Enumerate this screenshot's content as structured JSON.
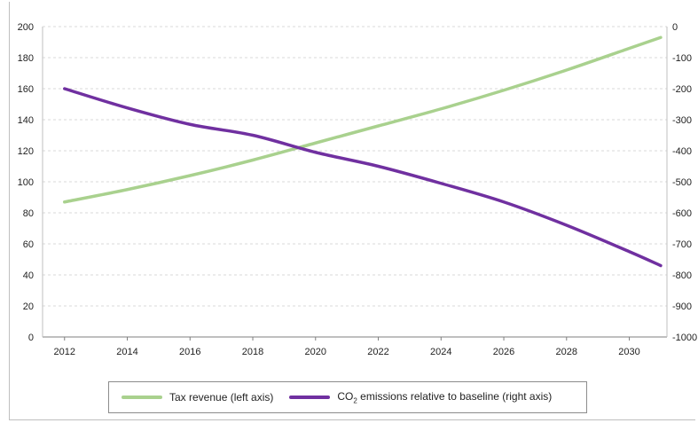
{
  "chart_data": {
    "type": "line",
    "title": "",
    "xlabel": "",
    "ylabel_left": "",
    "ylabel_right": "",
    "x_ticks": [
      "2012",
      "2014",
      "2016",
      "2018",
      "2020",
      "2022",
      "2024",
      "2026",
      "2028",
      "2030"
    ],
    "y_left_ticks": [
      "0",
      "20",
      "40",
      "60",
      "80",
      "100",
      "120",
      "140",
      "160",
      "180",
      "200"
    ],
    "y_right_ticks": [
      "0",
      "-100",
      "-200",
      "-300",
      "-400",
      "-500",
      "-600",
      "-700",
      "-800",
      "-900",
      "-1000"
    ],
    "xlim": [
      2011.3,
      2031.2
    ],
    "ylim_left": [
      0,
      200
    ],
    "ylim_right": [
      -1000,
      0
    ],
    "grid": true,
    "legend_position": "bottom",
    "series": [
      {
        "name": "Tax revenue (left axis)",
        "axis": "left",
        "color": "#a9d18e",
        "x": [
          2012,
          2014,
          2016,
          2018,
          2020,
          2022,
          2024,
          2026,
          2028,
          2030,
          2031
        ],
        "y": [
          87,
          95,
          104,
          114,
          125,
          136,
          147,
          159,
          172,
          186,
          193
        ]
      },
      {
        "name": "CO2 emissions relative to baseline (right axis)",
        "axis": "right",
        "color": "#7030a0",
        "x": [
          2012,
          2014,
          2016,
          2018,
          2020,
          2022,
          2024,
          2026,
          2028,
          2030,
          2031
        ],
        "y": [
          -200,
          -262,
          -315,
          -350,
          -405,
          -450,
          -505,
          -565,
          -640,
          -725,
          -770
        ]
      }
    ]
  },
  "legend": {
    "tax_label": "Tax revenue (left axis)",
    "co2_prefix": "CO",
    "co2_sub": "2",
    "co2_suffix": " emissions relative to baseline (right axis)"
  }
}
